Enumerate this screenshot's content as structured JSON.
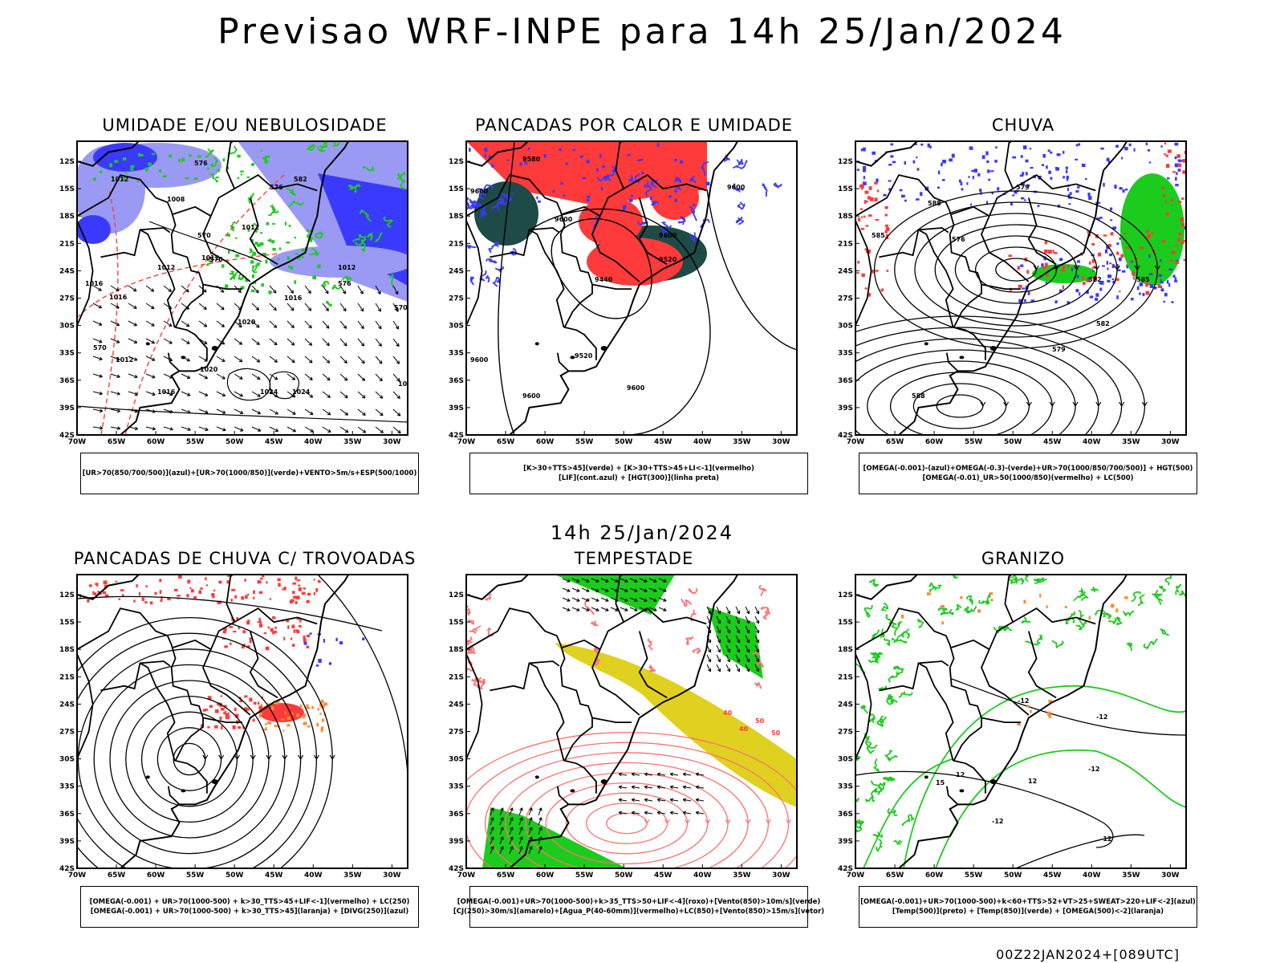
{
  "header": {
    "title": "Previsao WRF-INPE  para 14h 25/Jan/2024"
  },
  "middle": {
    "title": "14h 25/Jan/2024"
  },
  "footer": {
    "run_label": "00Z22JAN2024+[089UTC]"
  },
  "axes": {
    "lat_labels": [
      "12S",
      "15S",
      "18S",
      "21S",
      "24S",
      "27S",
      "30S",
      "33S",
      "36S",
      "39S",
      "42S"
    ],
    "lon_labels": [
      "70W",
      "65W",
      "60W",
      "55W",
      "50W",
      "45W",
      "40W",
      "35W",
      "30W"
    ]
  },
  "panels": [
    {
      "title": "UMIDADE E/OU NEBULOSIDADE",
      "legend": [
        "[UR>70(850/700/500)](azul)+[UR>70(1000/850)](verde)+VENTO>5m/s+ESP(500/1000)"
      ],
      "contour_labels": [
        "1012",
        "1008",
        "1012",
        "1012",
        "1016",
        "1016",
        "1020",
        "1020",
        "1024",
        "1024",
        "1016",
        "1020",
        "1012",
        "1016",
        "1012",
        "576",
        "570",
        "570",
        "576",
        "570",
        "582",
        "576",
        "570",
        "1012"
      ]
    },
    {
      "title": "PANCADAS POR CALOR E UMIDADE",
      "legend": [
        "[K>30+TTS>45](verde) + [K>30+TTS>45+LI<-1](vermelho)",
        "[LIF](cont.azul) + [HGT(300)](linha preta)"
      ],
      "contour_labels": [
        "9580",
        "9600",
        "9600",
        "9600",
        "9520",
        "9440",
        "9600",
        "9600",
        "9600",
        "9520",
        "9600"
      ]
    },
    {
      "title": "CHUVA",
      "legend": [
        "[OMEGA(-0.001)-(azul)+OMEGA(-0.3)-(verde)+UR>70(1000/850/700/500)] + HGT(500)",
        "[OMEGA(-0.01)_UR>50(1000/850)(vermelho) + LC(500)"
      ],
      "contour_labels": [
        "576",
        "579",
        "582",
        "585",
        "588",
        "588",
        "585",
        "582",
        "579"
      ]
    },
    {
      "title": "PANCADAS DE CHUVA C/ TROVOADAS",
      "legend": [
        "[OMEGA(-0.001) + UR>70(1000-500) + k>30_TTS>45+LIF<-1](vermelho) + LC(250)",
        "[OMEGA(-0.001) + UR>70(1000-500) + k>30_TTS>45](laranja) + [DIVG(250)](azul)"
      ],
      "contour_labels": []
    },
    {
      "title": "TEMPESTADE",
      "legend": [
        "[OMEGA(-0.001)+UR>70(1000-500)+k>35_TTS>50+LIF<-4](roxo)+[Vento(850)>10m/s](verde)",
        "[CJ(250)>30m/s](amarelo)+[Agua_P(40-60mm)](vermelho)+LC(850)+[Vento(850)>15m/s](vetor)"
      ],
      "contour_labels": [
        "40",
        "50",
        "40",
        "50"
      ]
    },
    {
      "title": "GRANIZO",
      "legend": [
        "[OMEGA(-0.001)+UR>70(1000-500)+k<60+TTS>52+VT>25+SWEAT>220+LIF<-2](azul)",
        "[Temp(500)](preto) + [Temp(850)](verde) + [OMEGA(500)<-2](laranja)"
      ],
      "contour_labels": [
        "-12",
        "-12",
        "-12",
        "-12",
        "12",
        "15",
        "12",
        "-12"
      ]
    }
  ],
  "colors": {
    "blue": "#3a3aff",
    "light_blue": "#9a9af5",
    "green": "#1ccc1c",
    "red": "#ff3a3a",
    "dark_teal": "#1e4a48",
    "yellow": "#e0d020",
    "orange": "#ff8a30",
    "light_red": "#ff7070"
  }
}
